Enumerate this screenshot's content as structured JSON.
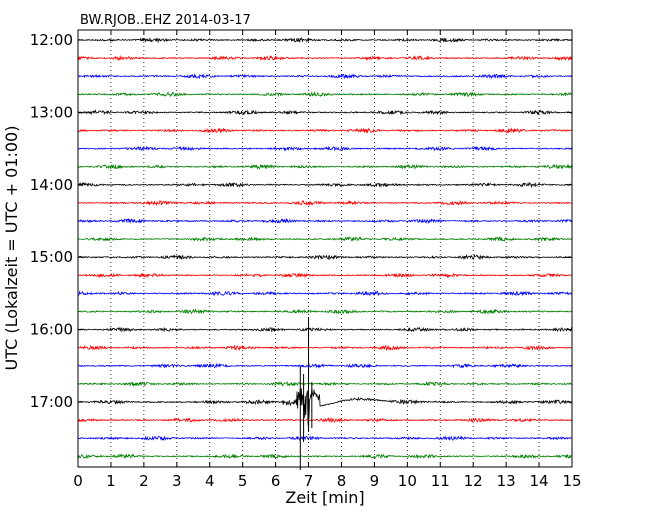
{
  "chart_data": {
    "type": "line",
    "title": "BW.RJOB..EHZ 2014-03-17",
    "xlabel": "Zeit  [min]",
    "ylabel": "UTC (Lokalzeit = UTC + 01:00)",
    "xlim": [
      0,
      15
    ],
    "x_ticks": [
      "0",
      "1",
      "2",
      "3",
      "4",
      "5",
      "6",
      "7",
      "8",
      "9",
      "10",
      "11",
      "12",
      "13",
      "14",
      "15"
    ],
    "y_ticks": [
      "12:00",
      "13:00",
      "14:00",
      "15:00",
      "16:00",
      "17:00"
    ],
    "grid": "vertical dotted lines at each minute",
    "trace_colors": [
      "#000000",
      "#ff0000",
      "#0000ff",
      "#008000"
    ],
    "trace_count": 24,
    "trace_start_times": [
      "12:00",
      "12:15",
      "12:30",
      "12:45",
      "13:00",
      "13:15",
      "13:30",
      "13:45",
      "14:00",
      "14:15",
      "14:30",
      "14:45",
      "15:00",
      "15:15",
      "15:30",
      "15:45",
      "16:00",
      "16:15",
      "16:30",
      "16:45",
      "17:00",
      "17:15",
      "17:30",
      "17:45"
    ],
    "event": {
      "trace_start": "17:00",
      "onset_min": 6.4,
      "peak_min": 7.0,
      "coda_end_min": 11.0
    }
  }
}
